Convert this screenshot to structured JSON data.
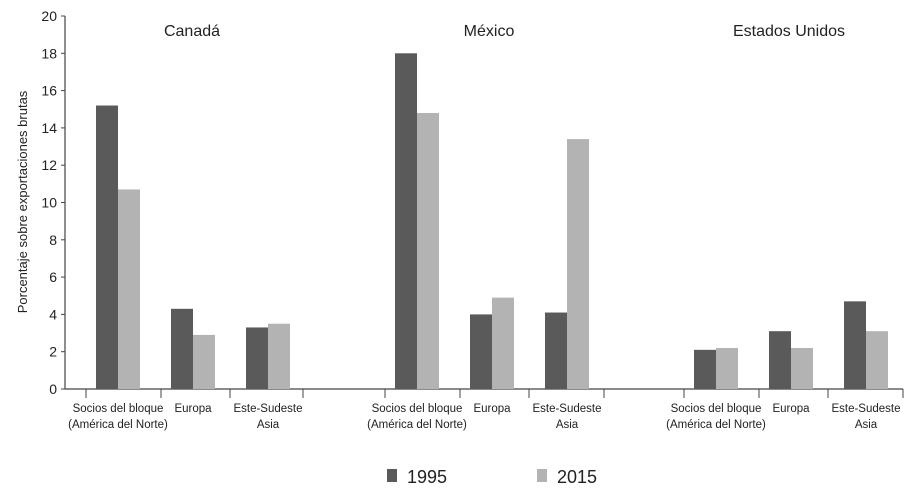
{
  "chart_data": {
    "type": "bar",
    "ylabel": "Porcentaje sobre exportaciones brutas",
    "ylim": [
      0,
      20
    ],
    "yticks": [
      "0",
      "2",
      "4",
      "6",
      "8",
      "10",
      "12",
      "14",
      "16",
      "18",
      "20"
    ],
    "groups": [
      {
        "title": "Canadá",
        "categories": [
          {
            "label": [
              "Socios del bloque",
              "(América del Norte)"
            ],
            "values": [
              15.2,
              10.7
            ]
          },
          {
            "label": [
              "Europa"
            ],
            "values": [
              4.3,
              2.9
            ]
          },
          {
            "label": [
              "Este-Sudeste",
              "Asia"
            ],
            "values": [
              3.3,
              3.5
            ]
          }
        ]
      },
      {
        "title": "México",
        "categories": [
          {
            "label": [
              "Socios del bloque",
              "(América del Norte)"
            ],
            "values": [
              18.0,
              14.8
            ]
          },
          {
            "label": [
              "Europa"
            ],
            "values": [
              4.0,
              4.9
            ]
          },
          {
            "label": [
              "Este-Sudeste",
              "Asia"
            ],
            "values": [
              4.1,
              13.4
            ]
          }
        ]
      },
      {
        "title": "Estados Unidos",
        "categories": [
          {
            "label": [
              "Socios del bloque",
              "(América del Norte)"
            ],
            "values": [
              2.1,
              2.2
            ]
          },
          {
            "label": [
              "Europa"
            ],
            "values": [
              3.1,
              2.2
            ]
          },
          {
            "label": [
              "Este-Sudeste",
              "Asia"
            ],
            "values": [
              4.7,
              3.1
            ]
          }
        ]
      }
    ],
    "series": [
      {
        "name": "1995",
        "color": "#5a5a5a"
      },
      {
        "name": "2015",
        "color": "#b3b3b3"
      }
    ],
    "legend": "bottom-center",
    "grid": false
  }
}
